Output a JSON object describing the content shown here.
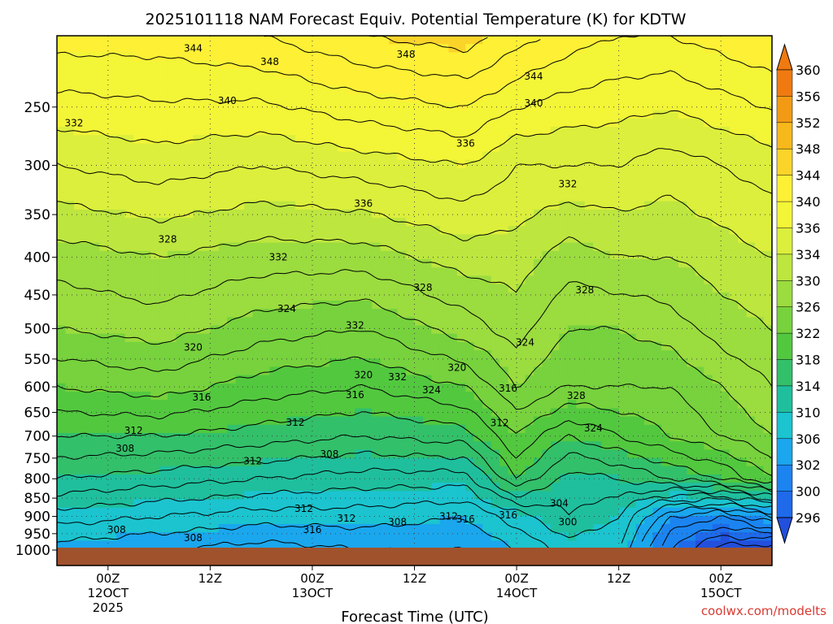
{
  "chart_data": {
    "type": "heatmap",
    "title": "2025101118 NAM Forecast Equiv. Potential Temperature (K) for KDTW",
    "xlabel": "Forecast Time (UTC)",
    "ylabel": "",
    "credit": "coolwx.com/modelts",
    "x_ticks": [
      {
        "hour": 6,
        "line1": "00Z",
        "line2": "12OCT",
        "line3": "2025"
      },
      {
        "hour": 18,
        "line1": "12Z",
        "line2": "",
        "line3": ""
      },
      {
        "hour": 30,
        "line1": "00Z",
        "line2": "13OCT",
        "line3": ""
      },
      {
        "hour": 42,
        "line1": "12Z",
        "line2": "",
        "line3": ""
      },
      {
        "hour": 54,
        "line1": "00Z",
        "line2": "14OCT",
        "line3": ""
      },
      {
        "hour": 66,
        "line1": "12Z",
        "line2": "",
        "line3": ""
      },
      {
        "hour": 78,
        "line1": "00Z",
        "line2": "15OCT",
        "line3": ""
      }
    ],
    "x_range_hours": [
      0,
      84
    ],
    "y_scale": "log-pressure",
    "y_range_hPa": [
      1000,
      200
    ],
    "y_ticks": [
      "250",
      "300",
      "350",
      "400",
      "450",
      "500",
      "550",
      "600",
      "650",
      "700",
      "750",
      "800",
      "850",
      "900",
      "950",
      "1000"
    ],
    "grid": true,
    "colorbar": {
      "labels": [
        "360",
        "356",
        "352",
        "348",
        "344",
        "340",
        "336",
        "334",
        "330",
        "326",
        "322",
        "318",
        "314",
        "310",
        "306",
        "302",
        "300",
        "296"
      ],
      "colors": [
        "#f07a10",
        "#f39a14",
        "#f7b81c",
        "#fbd42a",
        "#fef035",
        "#f3f537",
        "#dcef3c",
        "#bde63f",
        "#9bdc3f",
        "#77d23d",
        "#52c83f",
        "#33c06a",
        "#1fbf9d",
        "#1bc4cf",
        "#1aa7ee",
        "#1b84f0",
        "#1e6aeb",
        "#2250dd"
      ],
      "extend": "both"
    },
    "theta_e_profiles": [
      {
        "hour": 0,
        "values": [
          309,
          313,
          318,
          322,
          326,
          330,
          333,
          338,
          345
        ]
      },
      {
        "hour": 12,
        "values": [
          308,
          312,
          317,
          322,
          327,
          331,
          334,
          339,
          345
        ]
      },
      {
        "hour": 24,
        "values": [
          307,
          311,
          316,
          321,
          325,
          329,
          333,
          338,
          346
        ]
      },
      {
        "hour": 36,
        "values": [
          308,
          311,
          315,
          320,
          324,
          328,
          333,
          339,
          348
        ]
      },
      {
        "hour": 48,
        "values": [
          308,
          310,
          315,
          321,
          326,
          331,
          335,
          340,
          349
        ]
      },
      {
        "hour": 54,
        "values": [
          310,
          313,
          322,
          326,
          330,
          333,
          335,
          338,
          347
        ]
      },
      {
        "hour": 60,
        "values": [
          313,
          316,
          317,
          322,
          328,
          330,
          333,
          338,
          345
        ]
      },
      {
        "hour": 66,
        "values": [
          312,
          314,
          318,
          324,
          328,
          330,
          334,
          338,
          344
        ]
      },
      {
        "hour": 72,
        "values": [
          302,
          306,
          320,
          326,
          328,
          331,
          334,
          337,
          344
        ]
      },
      {
        "hour": 78,
        "values": [
          297,
          304,
          322,
          328,
          330,
          333,
          335,
          338,
          345
        ]
      },
      {
        "hour": 84,
        "values": [
          296,
          308,
          326,
          330,
          332,
          334,
          336,
          339,
          346
        ]
      }
    ],
    "profile_levels_hPa": [
      1000,
      900,
      800,
      700,
      600,
      500,
      400,
      300,
      200
    ],
    "contour_labels": [
      {
        "text": "344",
        "hour": 16,
        "hPa": 208
      },
      {
        "text": "348",
        "hour": 25,
        "hPa": 217
      },
      {
        "text": "348",
        "hour": 41,
        "hPa": 212
      },
      {
        "text": "344",
        "hour": 56,
        "hPa": 227
      },
      {
        "text": "340",
        "hour": 20,
        "hPa": 245
      },
      {
        "text": "340",
        "hour": 56,
        "hPa": 247
      },
      {
        "text": "332",
        "hour": 2,
        "hPa": 263
      },
      {
        "text": "336",
        "hour": 48,
        "hPa": 280
      },
      {
        "text": "332",
        "hour": 60,
        "hPa": 318
      },
      {
        "text": "336",
        "hour": 36,
        "hPa": 338
      },
      {
        "text": "328",
        "hour": 13,
        "hPa": 378
      },
      {
        "text": "332",
        "hour": 26,
        "hPa": 400
      },
      {
        "text": "328",
        "hour": 43,
        "hPa": 440
      },
      {
        "text": "328",
        "hour": 62,
        "hPa": 443
      },
      {
        "text": "324",
        "hour": 27,
        "hPa": 470
      },
      {
        "text": "332",
        "hour": 35,
        "hPa": 495
      },
      {
        "text": "324",
        "hour": 55,
        "hPa": 522
      },
      {
        "text": "320",
        "hour": 16,
        "hPa": 530
      },
      {
        "text": "320",
        "hour": 47,
        "hPa": 565
      },
      {
        "text": "320",
        "hour": 36,
        "hPa": 578
      },
      {
        "text": "332",
        "hour": 40,
        "hPa": 582
      },
      {
        "text": "324",
        "hour": 44,
        "hPa": 606
      },
      {
        "text": "316",
        "hour": 53,
        "hPa": 603
      },
      {
        "text": "316",
        "hour": 17,
        "hPa": 620
      },
      {
        "text": "316",
        "hour": 35,
        "hPa": 615
      },
      {
        "text": "328",
        "hour": 61,
        "hPa": 617
      },
      {
        "text": "312",
        "hour": 9,
        "hPa": 688
      },
      {
        "text": "312",
        "hour": 28,
        "hPa": 671
      },
      {
        "text": "312",
        "hour": 52,
        "hPa": 672
      },
      {
        "text": "324",
        "hour": 63,
        "hPa": 683
      },
      {
        "text": "308",
        "hour": 8,
        "hPa": 728
      },
      {
        "text": "308",
        "hour": 32,
        "hPa": 741
      },
      {
        "text": "312",
        "hour": 23,
        "hPa": 757
      },
      {
        "text": "312",
        "hour": 29,
        "hPa": 878
      },
      {
        "text": "304",
        "hour": 59,
        "hPa": 864
      },
      {
        "text": "312",
        "hour": 34,
        "hPa": 906
      },
      {
        "text": "312",
        "hour": 46,
        "hPa": 900
      },
      {
        "text": "316",
        "hour": 48,
        "hPa": 908
      },
      {
        "text": "316",
        "hour": 53,
        "hPa": 896
      },
      {
        "text": "308",
        "hour": 40,
        "hPa": 916
      },
      {
        "text": "300",
        "hour": 60,
        "hPa": 916
      },
      {
        "text": "308",
        "hour": 7,
        "hPa": 938
      },
      {
        "text": "316",
        "hour": 30,
        "hPa": 938
      },
      {
        "text": "308",
        "hour": 16,
        "hPa": 962
      }
    ]
  }
}
